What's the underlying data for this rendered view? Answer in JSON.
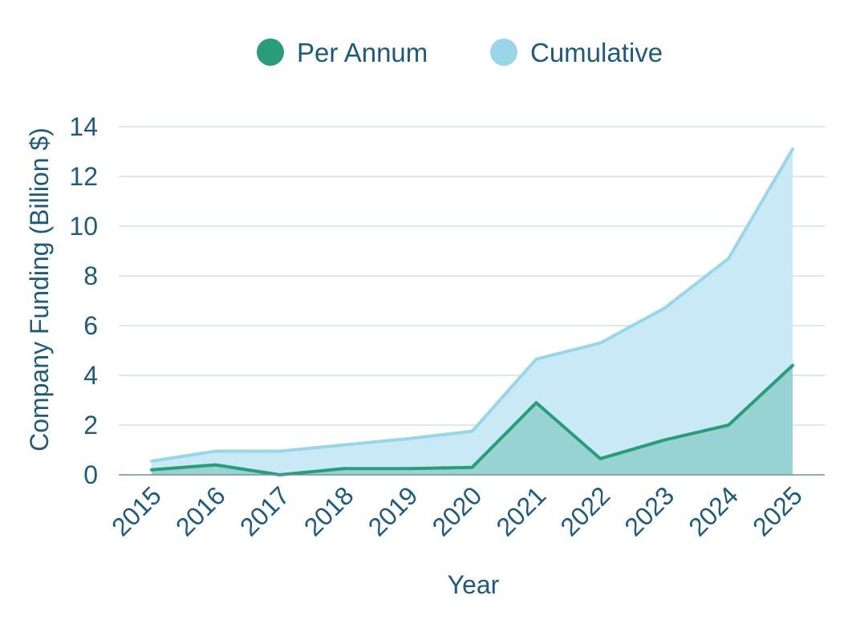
{
  "chart_data": {
    "type": "area",
    "title": "",
    "xlabel": "Year",
    "ylabel": "Company Funding (Billion $)",
    "x": [
      "2015",
      "2016",
      "2017",
      "2018",
      "2019",
      "2020",
      "2021",
      "2022",
      "2023",
      "2024",
      "2025"
    ],
    "ylim": [
      0,
      14
    ],
    "yticks": [
      "0",
      "2",
      "4",
      "6",
      "8",
      "10",
      "12",
      "14"
    ],
    "grid": true,
    "legend_position": "top-center",
    "series": [
      {
        "name": "Per Annum",
        "color": "#2a9d78",
        "fill": "#8fcfcc",
        "values": [
          0.2,
          0.4,
          0.0,
          0.25,
          0.25,
          0.3,
          2.9,
          0.65,
          1.4,
          2.0,
          4.4
        ]
      },
      {
        "name": "Cumulative",
        "color": "#99d6ea",
        "fill": "#cae9f6",
        "values": [
          0.55,
          0.95,
          0.95,
          1.2,
          1.45,
          1.75,
          4.65,
          5.3,
          6.7,
          8.7,
          13.1
        ]
      }
    ]
  }
}
